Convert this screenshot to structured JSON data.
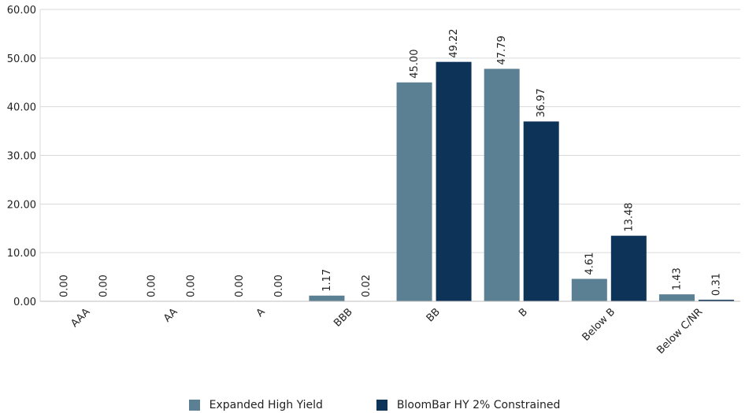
{
  "chart_data": {
    "type": "bar",
    "title": "",
    "xlabel": "",
    "ylabel": "",
    "ylim": [
      0,
      60
    ],
    "yticks": [
      "0.00",
      "10.00",
      "20.00",
      "30.00",
      "40.00",
      "50.00",
      "60.00"
    ],
    "grid": "horizontal",
    "legend_position": "bottom",
    "categories": [
      "AAA",
      "AA",
      "A",
      "BBB",
      "BB",
      "B",
      "Below B",
      "Below C/NR"
    ],
    "series": [
      {
        "name": "Expanded High Yield",
        "color": "#5b7f93",
        "values": [
          0.0,
          0.0,
          0.0,
          1.17,
          45.0,
          47.79,
          4.61,
          1.43
        ],
        "labels": [
          "0.00",
          "0.00",
          "0.00",
          "1.17",
          "45.00",
          "47.79",
          "4.61",
          "1.43"
        ]
      },
      {
        "name": "BloomBar HY 2% Constrained",
        "color": "#0e3358",
        "values": [
          0.0,
          0.0,
          0.0,
          0.02,
          49.22,
          36.97,
          13.48,
          0.31
        ],
        "labels": [
          "0.00",
          "0.00",
          "0.00",
          "0.02",
          "49.22",
          "36.97",
          "13.48",
          "0.31"
        ]
      }
    ]
  }
}
